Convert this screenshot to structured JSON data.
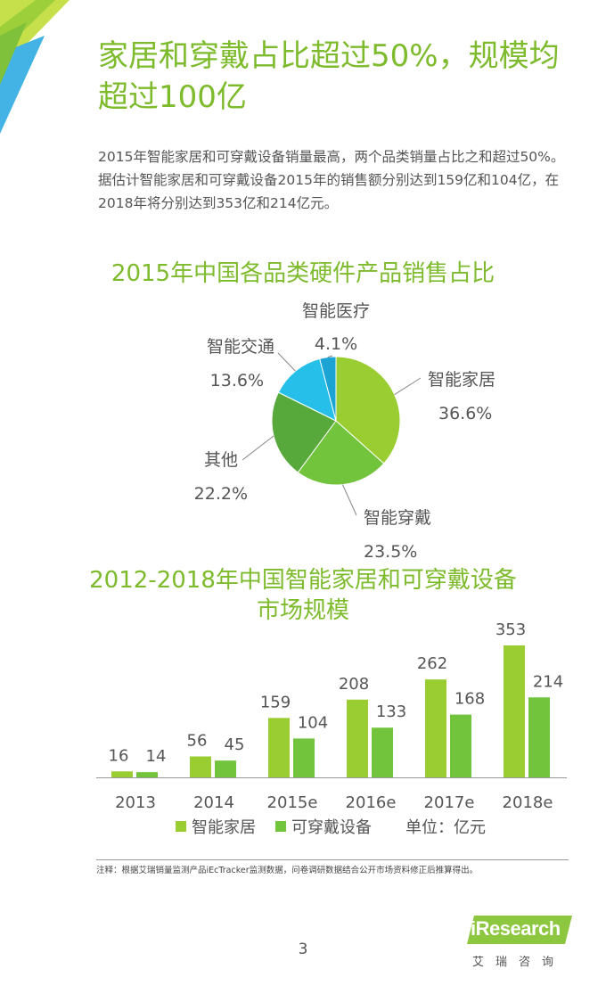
{
  "header": {
    "title": "家居和穿戴占比超过50%，规模均超过100亿"
  },
  "body": {
    "lines": [
      "2015年智能家居和可穿戴设备销量最高，两个品类销量占比之和超过50%。",
      "据估计智能家居和可穿戴设备2015年的销售额分别达到159亿和104亿，在2018年将分别达到353亿和214亿元。"
    ]
  },
  "colors": {
    "title_green": "#7dbb2c",
    "home": "#9acd32",
    "wearable": "#72c43d",
    "other": "#58a93c",
    "transport": "#25bfea",
    "medical": "#1ba3d4"
  },
  "chart_data": [
    {
      "type": "pie",
      "title": "2015年中国各品类硬件产品销售占比",
      "slices": [
        {
          "name": "智能家居",
          "value": 36.6,
          "label": "36.6%",
          "color": "#9acd32"
        },
        {
          "name": "智能穿戴",
          "value": 23.5,
          "label": "23.5%",
          "color": "#72c43d"
        },
        {
          "name": "其他",
          "value": 22.2,
          "label": "22.2%",
          "color": "#58a93c"
        },
        {
          "name": "智能交通",
          "value": 13.6,
          "label": "13.6%",
          "color": "#25bfea"
        },
        {
          "name": "智能医疗",
          "value": 4.1,
          "label": "4.1%",
          "color": "#1ba3d4"
        }
      ]
    },
    {
      "type": "bar",
      "title_lines": [
        "2012-2018年中国智能家居和可穿戴设备",
        "市场规模"
      ],
      "categories": [
        "2013",
        "2014",
        "2015e",
        "2016e",
        "2017e",
        "2018e"
      ],
      "series": [
        {
          "name": "智能家居",
          "color": "#9acd32",
          "values": [
            16,
            56,
            159,
            208,
            262,
            353
          ]
        },
        {
          "name": "可穿戴设备",
          "color": "#72c43d",
          "values": [
            14,
            45,
            104,
            133,
            168,
            214
          ]
        }
      ],
      "unit_note": "单位：亿元",
      "ylim": [
        0,
        353
      ]
    }
  ],
  "footer": {
    "note": "注释：根据艾瑞销量监测产品iEcTracker监测数据，问卷调研数据结合公开市场资料修正后推算得出。",
    "page_number": "3",
    "logo_text": "iResearch",
    "logo_cn": "艾瑞咨询"
  }
}
